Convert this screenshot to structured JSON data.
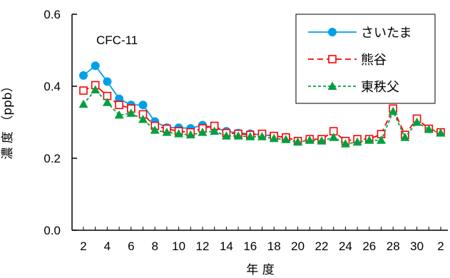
{
  "chart_data": {
    "type": "line",
    "annotation": "CFC-11",
    "xlabel": "年 度",
    "ylabel": "濃 度 （ppb）",
    "ylim": [
      0,
      0.6
    ],
    "yticks": [
      "0.0",
      "0.2",
      "0.4",
      "0.6"
    ],
    "x": [
      2,
      3,
      4,
      5,
      6,
      7,
      8,
      9,
      10,
      11,
      12,
      13,
      14,
      15,
      16,
      17,
      18,
      19,
      20,
      21,
      22,
      23,
      24,
      25,
      26,
      27,
      28,
      29,
      30,
      31,
      32
    ],
    "xtick_labels": [
      "2",
      "4",
      "6",
      "8",
      "10",
      "12",
      "14",
      "16",
      "18",
      "20",
      "22",
      "24",
      "26",
      "28",
      "30",
      "2"
    ],
    "legend_position": "top-right",
    "series": [
      {
        "name": "さいたま",
        "color": "#00a0e9",
        "marker": "circle",
        "dash": "solid",
        "values": [
          0.43,
          0.457,
          0.413,
          0.365,
          0.348,
          0.348,
          0.302,
          0.285,
          0.285,
          0.283,
          0.292,
          0.285,
          0.275,
          0.27,
          0.268,
          0.265,
          0.262,
          0.258,
          null,
          null,
          null,
          null,
          null,
          null,
          null,
          null,
          null,
          null,
          null,
          null,
          null
        ]
      },
      {
        "name": "熊谷",
        "color": "#ff0000",
        "marker": "square-open",
        "dash": "dashed",
        "values": [
          0.388,
          0.403,
          0.373,
          0.348,
          0.338,
          0.322,
          0.29,
          0.282,
          0.275,
          0.272,
          0.283,
          0.29,
          0.27,
          0.268,
          0.265,
          0.268,
          0.262,
          0.258,
          0.248,
          0.253,
          0.253,
          0.275,
          0.248,
          0.253,
          0.253,
          0.267,
          0.338,
          0.265,
          0.31,
          0.282,
          0.272
        ]
      },
      {
        "name": "東秩父",
        "color": "#00a040",
        "marker": "triangle",
        "dash": "dotted",
        "values": [
          0.35,
          0.39,
          0.355,
          0.32,
          0.325,
          0.308,
          0.278,
          0.272,
          0.268,
          0.265,
          0.272,
          0.275,
          0.262,
          0.262,
          0.26,
          0.26,
          0.255,
          0.252,
          0.245,
          0.25,
          0.248,
          0.258,
          0.24,
          0.245,
          0.25,
          0.25,
          0.33,
          0.258,
          0.3,
          0.28,
          0.27
        ]
      }
    ]
  }
}
